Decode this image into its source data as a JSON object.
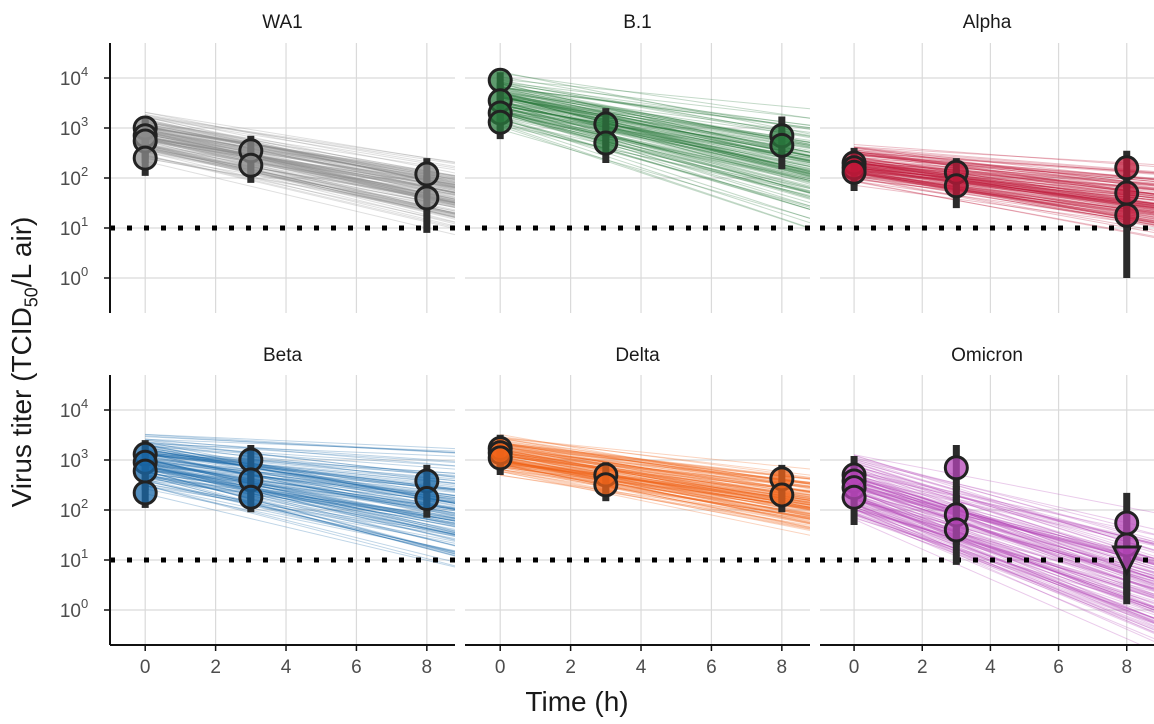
{
  "figure": {
    "ylabel_main": "Virus titer (TCID",
    "ylabel_sub": "50",
    "ylabel_tail": "/L air)",
    "xlabel": "Time (h)",
    "x_ticks": [
      "0",
      "2",
      "4",
      "6",
      "8"
    ],
    "y_ticks": [
      "10",
      "10",
      "10",
      "10",
      "10"
    ],
    "y_tick_exponents": [
      "0",
      "1",
      "2",
      "3",
      "4"
    ]
  },
  "chart_data": [
    {
      "type": "scatter",
      "title": "WA1",
      "color": "#8c8c8c",
      "x_range": [
        -1,
        8.8
      ],
      "y_log10_range": [
        -0.7,
        4.7
      ],
      "y_scale": "log10",
      "detection_limit": 10,
      "points": [
        {
          "x": 0,
          "y": 1000,
          "lo": 300,
          "hi": 1700
        },
        {
          "x": 0,
          "y": 700,
          "lo": 250,
          "hi": 1400
        },
        {
          "x": 0,
          "y": 550,
          "lo": 200,
          "hi": 1100
        },
        {
          "x": 0,
          "y": 250,
          "lo": 110,
          "hi": 600
        },
        {
          "x": 3,
          "y": 350,
          "lo": 120,
          "hi": 700
        },
        {
          "x": 3,
          "y": 180,
          "lo": 80,
          "hi": 400
        },
        {
          "x": 8,
          "y": 120,
          "lo": 40,
          "hi": 250
        },
        {
          "x": 8,
          "y": 40,
          "lo": 8,
          "hi": 110
        }
      ],
      "fit": {
        "start_low": 150,
        "start_high": 3500,
        "end_low": 10,
        "end_high": 300
      }
    },
    {
      "type": "scatter",
      "title": "B.1",
      "color": "#2a7a3e",
      "x_range": [
        -1,
        8.8
      ],
      "y_log10_range": [
        -0.7,
        4.7
      ],
      "y_scale": "log10",
      "detection_limit": 10,
      "points": [
        {
          "x": 0,
          "y": 9000,
          "lo": 3000,
          "hi": 13000
        },
        {
          "x": 0,
          "y": 3500,
          "lo": 1200,
          "hi": 8000
        },
        {
          "x": 0,
          "y": 2000,
          "lo": 900,
          "hi": 5000
        },
        {
          "x": 0,
          "y": 1300,
          "lo": 600,
          "hi": 3000
        },
        {
          "x": 3,
          "y": 1200,
          "lo": 400,
          "hi": 2500
        },
        {
          "x": 3,
          "y": 500,
          "lo": 200,
          "hi": 1200
        },
        {
          "x": 8,
          "y": 700,
          "lo": 300,
          "hi": 1700
        },
        {
          "x": 8,
          "y": 450,
          "lo": 150,
          "hi": 900
        }
      ],
      "fit": {
        "start_low": 800,
        "start_high": 15000,
        "end_low": 15,
        "end_high": 3000
      }
    },
    {
      "type": "scatter",
      "title": "Alpha",
      "color": "#c0183a",
      "x_range": [
        -1,
        8.8
      ],
      "y_log10_range": [
        -0.7,
        4.7
      ],
      "y_scale": "log10",
      "detection_limit": 10,
      "points": [
        {
          "x": 0,
          "y": 200,
          "lo": 80,
          "hi": 400
        },
        {
          "x": 0,
          "y": 160,
          "lo": 70,
          "hi": 350
        },
        {
          "x": 0,
          "y": 130,
          "lo": 55,
          "hi": 300
        },
        {
          "x": 3,
          "y": 130,
          "lo": 50,
          "hi": 250
        },
        {
          "x": 3,
          "y": 70,
          "lo": 25,
          "hi": 150
        },
        {
          "x": 8,
          "y": 160,
          "lo": 60,
          "hi": 350
        },
        {
          "x": 8,
          "y": 50,
          "lo": 10,
          "hi": 120
        },
        {
          "x": 8,
          "y": 18,
          "lo": 1,
          "hi": 40
        }
      ],
      "fit": {
        "start_low": 60,
        "start_high": 600,
        "end_low": 8,
        "end_high": 200
      }
    },
    {
      "type": "scatter",
      "title": "Beta",
      "color": "#1a68a8",
      "x_range": [
        -1,
        8.8
      ],
      "y_log10_range": [
        -0.7,
        4.7
      ],
      "y_scale": "log10",
      "detection_limit": 10,
      "points": [
        {
          "x": 0,
          "y": 1300,
          "lo": 500,
          "hi": 2500
        },
        {
          "x": 0,
          "y": 900,
          "lo": 350,
          "hi": 1800
        },
        {
          "x": 0,
          "y": 600,
          "lo": 250,
          "hi": 1200
        },
        {
          "x": 0,
          "y": 220,
          "lo": 110,
          "hi": 450
        },
        {
          "x": 3,
          "y": 1000,
          "lo": 400,
          "hi": 2000
        },
        {
          "x": 3,
          "y": 400,
          "lo": 150,
          "hi": 800
        },
        {
          "x": 3,
          "y": 180,
          "lo": 90,
          "hi": 400
        },
        {
          "x": 8,
          "y": 380,
          "lo": 130,
          "hi": 800
        },
        {
          "x": 8,
          "y": 170,
          "lo": 70,
          "hi": 350
        }
      ],
      "fit": {
        "start_low": 150,
        "start_high": 6000,
        "end_low": 5,
        "end_high": 2500
      }
    },
    {
      "type": "scatter",
      "title": "Delta",
      "color": "#f26419",
      "x_range": [
        -1,
        8.8
      ],
      "y_log10_range": [
        -0.7,
        4.7
      ],
      "y_scale": "log10",
      "detection_limit": 10,
      "points": [
        {
          "x": 0,
          "y": 1700,
          "lo": 700,
          "hi": 3200
        },
        {
          "x": 0,
          "y": 1400,
          "lo": 600,
          "hi": 2800
        },
        {
          "x": 0,
          "y": 1100,
          "lo": 500,
          "hi": 2200
        },
        {
          "x": 3,
          "y": 500,
          "lo": 200,
          "hi": 900
        },
        {
          "x": 3,
          "y": 320,
          "lo": 150,
          "hi": 600
        },
        {
          "x": 8,
          "y": 420,
          "lo": 150,
          "hi": 800
        },
        {
          "x": 8,
          "y": 200,
          "lo": 90,
          "hi": 400
        }
      ],
      "fit": {
        "start_low": 300,
        "start_high": 4000,
        "end_low": 25,
        "end_high": 800
      }
    },
    {
      "type": "scatter",
      "title": "Omicron",
      "color": "#b545b8",
      "x_range": [
        -1,
        8.8
      ],
      "y_log10_range": [
        -0.7,
        4.7
      ],
      "y_scale": "log10",
      "detection_limit": 10,
      "points": [
        {
          "x": 0,
          "y": 500,
          "lo": 180,
          "hi": 1200
        },
        {
          "x": 0,
          "y": 380,
          "lo": 150,
          "hi": 900
        },
        {
          "x": 0,
          "y": 280,
          "lo": 110,
          "hi": 700
        },
        {
          "x": 0,
          "y": 180,
          "lo": 50,
          "hi": 400
        },
        {
          "x": 3,
          "y": 700,
          "lo": 250,
          "hi": 2000
        },
        {
          "x": 3,
          "y": 80,
          "lo": 20,
          "hi": 300
        },
        {
          "x": 3,
          "y": 40,
          "lo": 8,
          "hi": 200
        },
        {
          "x": 8,
          "y": 55,
          "lo": 10,
          "hi": 220
        },
        {
          "x": 8,
          "y": 20,
          "lo": 2,
          "hi": 80
        },
        {
          "x": 8,
          "y": 10,
          "lo": 1.3,
          "hi": 40,
          "censored": true
        }
      ],
      "fit": {
        "start_low": 30,
        "start_high": 2500,
        "end_low": 0.2,
        "end_high": 120
      }
    }
  ]
}
